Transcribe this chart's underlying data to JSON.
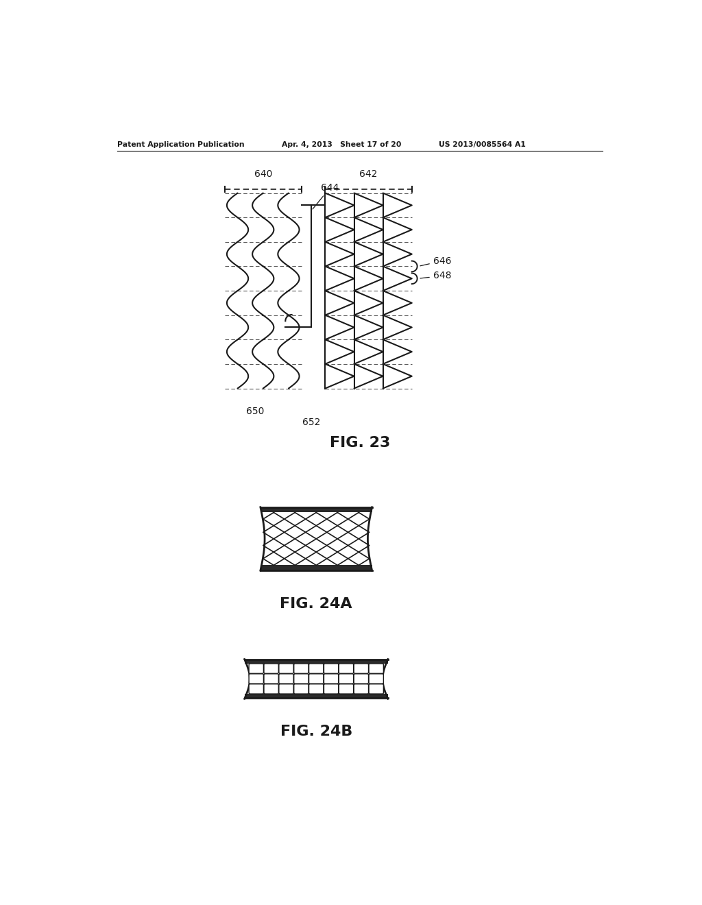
{
  "bg_color": "#ffffff",
  "header_left": "Patent Application Publication",
  "header_mid": "Apr. 4, 2013   Sheet 17 of 20",
  "header_right": "US 2013/0085564 A1",
  "fig23_label": "FIG. 23",
  "fig24a_label": "FIG. 24A",
  "fig24b_label": "FIG. 24B",
  "label_640": "640",
  "label_642": "642",
  "label_644": "644",
  "label_646": "646",
  "label_648": "648",
  "label_650": "650",
  "label_652": "652",
  "line_color": "#1a1a1a",
  "text_color": "#1a1a1a"
}
